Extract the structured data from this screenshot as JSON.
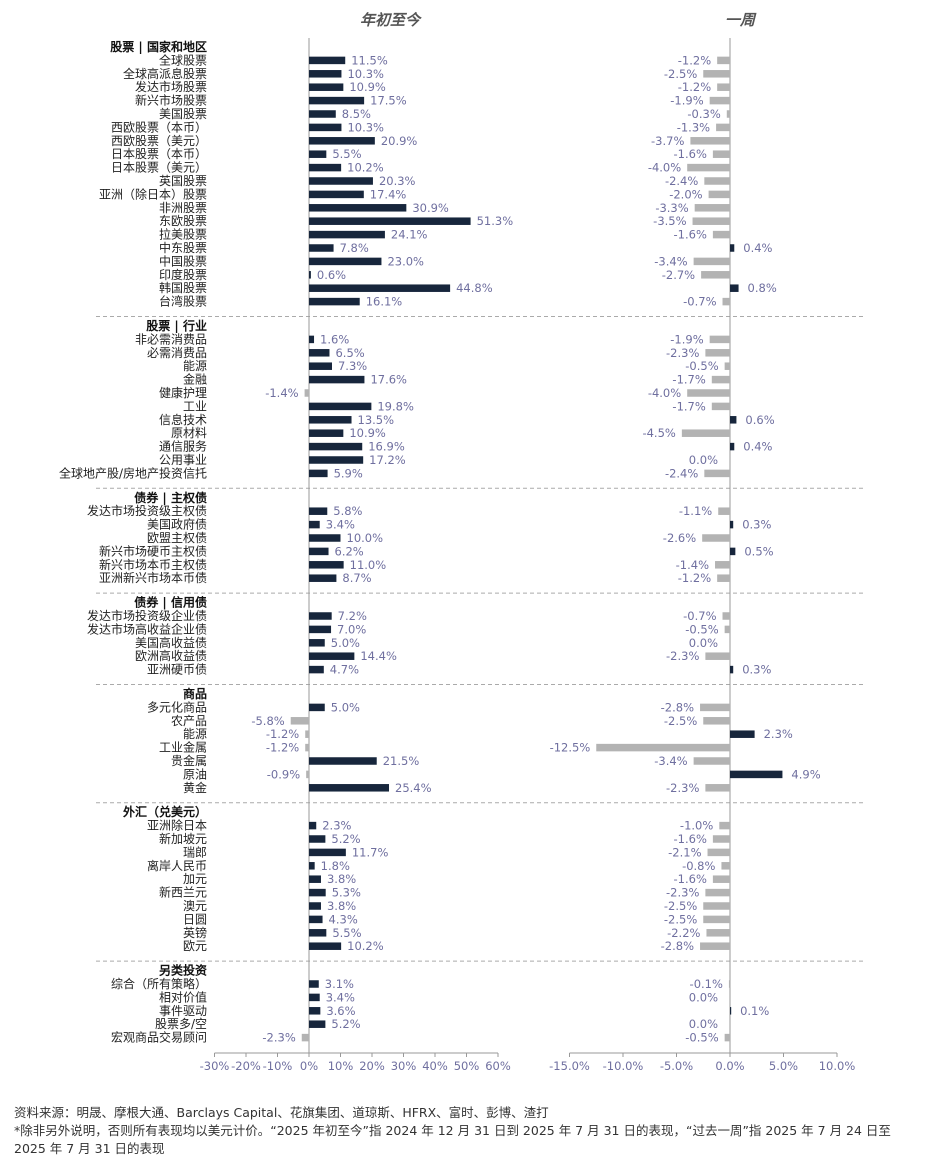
{
  "chart_data": [
    {
      "type": "bar",
      "orientation": "horizontal",
      "title": "年初至今",
      "xlim": [
        -30,
        60
      ],
      "xticks": [
        "-30%",
        "-20%",
        "-10%",
        "0%",
        "10%",
        "20%",
        "30%",
        "40%",
        "50%",
        "60%"
      ],
      "colors": {
        "positive": "#17263c",
        "negative": "#b3b3b3",
        "label": "#6f6f9f"
      },
      "groups": [
        {
          "header": "股票 | 国家和地区",
          "items": [
            {
              "label": "全球股票",
              "value": 11.5,
              "text": "11.5%"
            },
            {
              "label": "全球高派息股票",
              "value": 10.3,
              "text": "10.3%"
            },
            {
              "label": "发达市场股票",
              "value": 10.9,
              "text": "10.9%"
            },
            {
              "label": "新兴市场股票",
              "value": 17.5,
              "text": "17.5%"
            },
            {
              "label": "美国股票",
              "value": 8.5,
              "text": "8.5%"
            },
            {
              "label": "西欧股票（本币）",
              "value": 10.3,
              "text": "10.3%"
            },
            {
              "label": "西欧股票（美元）",
              "value": 20.9,
              "text": "20.9%"
            },
            {
              "label": "日本股票（本币）",
              "value": 5.5,
              "text": "5.5%"
            },
            {
              "label": "日本股票（美元）",
              "value": 10.2,
              "text": "10.2%"
            },
            {
              "label": "英国股票",
              "value": 20.3,
              "text": "20.3%"
            },
            {
              "label": "亚洲（除日本）股票",
              "value": 17.4,
              "text": "17.4%"
            },
            {
              "label": "非洲股票",
              "value": 30.9,
              "text": "30.9%"
            },
            {
              "label": "东欧股票",
              "value": 51.3,
              "text": "51.3%"
            },
            {
              "label": "拉美股票",
              "value": 24.1,
              "text": "24.1%"
            },
            {
              "label": "中东股票",
              "value": 7.8,
              "text": "7.8%"
            },
            {
              "label": "中国股票",
              "value": 23.0,
              "text": "23.0%"
            },
            {
              "label": "印度股票",
              "value": 0.6,
              "text": "0.6%"
            },
            {
              "label": "韩国股票",
              "value": 44.8,
              "text": "44.8%"
            },
            {
              "label": "台湾股票",
              "value": 16.1,
              "text": "16.1%"
            }
          ]
        },
        {
          "header": "股票 | 行业",
          "items": [
            {
              "label": "非必需消费品",
              "value": 1.6,
              "text": "1.6%"
            },
            {
              "label": "必需消费品",
              "value": 6.5,
              "text": "6.5%"
            },
            {
              "label": "能源",
              "value": 7.3,
              "text": "7.3%"
            },
            {
              "label": "金融",
              "value": 17.6,
              "text": "17.6%"
            },
            {
              "label": "健康护理",
              "value": -1.4,
              "text": "-1.4%"
            },
            {
              "label": "工业",
              "value": 19.8,
              "text": "19.8%"
            },
            {
              "label": "信息技术",
              "value": 13.5,
              "text": "13.5%"
            },
            {
              "label": "原材料",
              "value": 10.9,
              "text": "10.9%"
            },
            {
              "label": "通信服务",
              "value": 16.9,
              "text": "16.9%"
            },
            {
              "label": "公用事业",
              "value": 17.2,
              "text": "17.2%"
            },
            {
              "label": "全球地产股/房地产投资信托",
              "value": 5.9,
              "text": "5.9%"
            }
          ]
        },
        {
          "header": "债券 | 主权债",
          "items": [
            {
              "label": "发达市场投资级主权债",
              "value": 5.8,
              "text": "5.8%"
            },
            {
              "label": "美国政府债",
              "value": 3.4,
              "text": "3.4%"
            },
            {
              "label": "欧盟主权债",
              "value": 10.0,
              "text": "10.0%"
            },
            {
              "label": "新兴市场硬币主权债",
              "value": 6.2,
              "text": "6.2%"
            },
            {
              "label": "新兴市场本币主权债",
              "value": 11.0,
              "text": "11.0%"
            },
            {
              "label": "亚洲新兴市场本币债",
              "value": 8.7,
              "text": "8.7%"
            }
          ]
        },
        {
          "header": "债券 | 信用债",
          "items": [
            {
              "label": "发达市场投资级企业债",
              "value": 7.2,
              "text": "7.2%"
            },
            {
              "label": "发达市场高收益企业债",
              "value": 7.0,
              "text": "7.0%"
            },
            {
              "label": "美国高收益债",
              "value": 5.0,
              "text": "5.0%"
            },
            {
              "label": "欧洲高收益债",
              "value": 14.4,
              "text": "14.4%"
            },
            {
              "label": "亚洲硬币债",
              "value": 4.7,
              "text": "4.7%"
            }
          ]
        },
        {
          "header": "商品",
          "items": [
            {
              "label": "多元化商品",
              "value": 5.0,
              "text": "5.0%"
            },
            {
              "label": "农产品",
              "value": -5.8,
              "text": "-5.8%"
            },
            {
              "label": "能源",
              "value": -1.2,
              "text": "-1.2%"
            },
            {
              "label": "工业金属",
              "value": -1.2,
              "text": "-1.2%"
            },
            {
              "label": "贵金属",
              "value": 21.5,
              "text": "21.5%"
            },
            {
              "label": "原油",
              "value": -0.9,
              "text": "-0.9%"
            },
            {
              "label": "黄金",
              "value": 25.4,
              "text": "25.4%"
            }
          ]
        },
        {
          "header": "外汇（兑美元）",
          "items": [
            {
              "label": "亚洲除日本",
              "value": 2.3,
              "text": "2.3%"
            },
            {
              "label": "新加坡元",
              "value": 5.2,
              "text": "5.2%"
            },
            {
              "label": "瑞郎",
              "value": 11.7,
              "text": "11.7%"
            },
            {
              "label": "离岸人民币",
              "value": 1.8,
              "text": "1.8%"
            },
            {
              "label": "加元",
              "value": 3.8,
              "text": "3.8%"
            },
            {
              "label": "新西兰元",
              "value": 5.3,
              "text": "5.3%"
            },
            {
              "label": "澳元",
              "value": 3.8,
              "text": "3.8%"
            },
            {
              "label": "日圆",
              "value": 4.3,
              "text": "4.3%"
            },
            {
              "label": "英镑",
              "value": 5.5,
              "text": "5.5%"
            },
            {
              "label": "欧元",
              "value": 10.2,
              "text": "10.2%"
            }
          ]
        },
        {
          "header": "另类投资",
          "items": [
            {
              "label": "综合（所有策略）",
              "value": 3.1,
              "text": "3.1%"
            },
            {
              "label": "相对价值",
              "value": 3.4,
              "text": "3.4%"
            },
            {
              "label": "事件驱动",
              "value": 3.6,
              "text": "3.6%"
            },
            {
              "label": "股票多/空",
              "value": 5.2,
              "text": "5.2%"
            },
            {
              "label": "宏观商品交易顾问",
              "value": -2.3,
              "text": "-2.3%"
            }
          ]
        }
      ]
    },
    {
      "type": "bar",
      "orientation": "horizontal",
      "title": "一周",
      "xlim": [
        -15,
        10
      ],
      "xticks": [
        "-15.0%",
        "-10.0%",
        "-5.0%",
        "0.0%",
        "5.0%",
        "10.0%"
      ],
      "colors": {
        "positive": "#17263c",
        "negative": "#b3b3b3",
        "label": "#6f6f9f"
      },
      "groups": [
        {
          "items": [
            {
              "value": -1.2,
              "text": "-1.2%"
            },
            {
              "value": -2.5,
              "text": "-2.5%"
            },
            {
              "value": -1.2,
              "text": "-1.2%"
            },
            {
              "value": -1.9,
              "text": "-1.9%"
            },
            {
              "value": -0.3,
              "text": "-0.3%"
            },
            {
              "value": -1.3,
              "text": "-1.3%"
            },
            {
              "value": -3.7,
              "text": "-3.7%"
            },
            {
              "value": -1.6,
              "text": "-1.6%"
            },
            {
              "value": -4.0,
              "text": "-4.0%"
            },
            {
              "value": -2.4,
              "text": "-2.4%"
            },
            {
              "value": -2.0,
              "text": "-2.0%"
            },
            {
              "value": -3.3,
              "text": "-3.3%"
            },
            {
              "value": -3.5,
              "text": "-3.5%"
            },
            {
              "value": -1.6,
              "text": "-1.6%"
            },
            {
              "value": 0.4,
              "text": "0.4%"
            },
            {
              "value": -3.4,
              "text": "-3.4%"
            },
            {
              "value": -2.7,
              "text": "-2.7%"
            },
            {
              "value": 0.8,
              "text": "0.8%"
            },
            {
              "value": -0.7,
              "text": "-0.7%"
            }
          ]
        },
        {
          "items": [
            {
              "value": -1.9,
              "text": "-1.9%"
            },
            {
              "value": -2.3,
              "text": "-2.3%"
            },
            {
              "value": -0.5,
              "text": "-0.5%"
            },
            {
              "value": -1.7,
              "text": "-1.7%"
            },
            {
              "value": -4.0,
              "text": "-4.0%"
            },
            {
              "value": -1.7,
              "text": "-1.7%"
            },
            {
              "value": 0.6,
              "text": "0.6%"
            },
            {
              "value": -4.5,
              "text": "-4.5%"
            },
            {
              "value": 0.4,
              "text": "0.4%"
            },
            {
              "value": 0.0,
              "text": "0.0%"
            },
            {
              "value": -2.4,
              "text": "-2.4%"
            }
          ]
        },
        {
          "items": [
            {
              "value": -1.1,
              "text": "-1.1%"
            },
            {
              "value": 0.3,
              "text": "0.3%"
            },
            {
              "value": -2.6,
              "text": "-2.6%"
            },
            {
              "value": 0.5,
              "text": "0.5%"
            },
            {
              "value": -1.4,
              "text": "-1.4%"
            },
            {
              "value": -1.2,
              "text": "-1.2%"
            }
          ]
        },
        {
          "items": [
            {
              "value": -0.7,
              "text": "-0.7%"
            },
            {
              "value": -0.5,
              "text": "-0.5%"
            },
            {
              "value": 0.0,
              "text": "0.0%"
            },
            {
              "value": -2.3,
              "text": "-2.3%"
            },
            {
              "value": 0.3,
              "text": "0.3%"
            }
          ]
        },
        {
          "items": [
            {
              "value": -2.8,
              "text": "-2.8%"
            },
            {
              "value": -2.5,
              "text": "-2.5%"
            },
            {
              "value": 2.3,
              "text": "2.3%"
            },
            {
              "value": -12.5,
              "text": "-12.5%"
            },
            {
              "value": -3.4,
              "text": "-3.4%"
            },
            {
              "value": 4.9,
              "text": "4.9%"
            },
            {
              "value": -2.3,
              "text": "-2.3%"
            }
          ]
        },
        {
          "items": [
            {
              "value": -1.0,
              "text": "-1.0%"
            },
            {
              "value": -1.6,
              "text": "-1.6%"
            },
            {
              "value": -2.1,
              "text": "-2.1%"
            },
            {
              "value": -0.8,
              "text": "-0.8%"
            },
            {
              "value": -1.6,
              "text": "-1.6%"
            },
            {
              "value": -2.3,
              "text": "-2.3%"
            },
            {
              "value": -2.5,
              "text": "-2.5%"
            },
            {
              "value": -2.5,
              "text": "-2.5%"
            },
            {
              "value": -2.2,
              "text": "-2.2%"
            },
            {
              "value": -2.8,
              "text": "-2.8%"
            }
          ]
        },
        {
          "items": [
            {
              "value": -0.1,
              "text": "-0.1%"
            },
            {
              "value": 0.0,
              "text": "0.0%"
            },
            {
              "value": 0.1,
              "text": "0.1%"
            },
            {
              "value": 0.0,
              "text": "0.0%"
            },
            {
              "value": -0.5,
              "text": "-0.5%"
            }
          ]
        }
      ]
    }
  ],
  "notes": {
    "source": "资料来源：明晟、摩根大通、Barclays Capital、花旗集团、道琼斯、HFRX、富时、彭博、渣打",
    "footnote": "*除非另外说明，否则所有表现均以美元计价。“2025 年初至今”指 2024 年 12 月 31 日到 2025 年 7 月 31 日的表现，“过去一周”指 2025 年 7 月 24 日至 2025 年 7 月 31 日的表现"
  }
}
